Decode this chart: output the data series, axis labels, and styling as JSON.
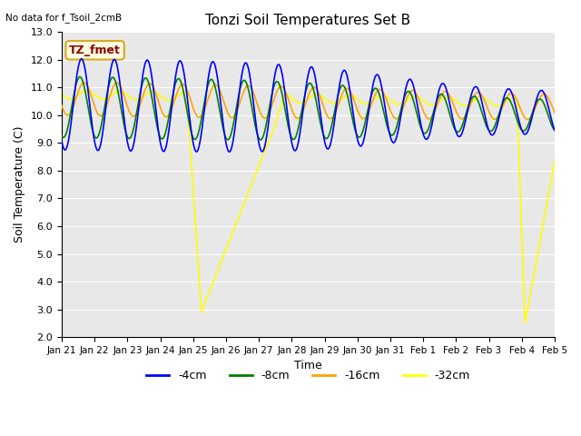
{
  "title": "Tonzi Soil Temperatures Set B",
  "no_data_label": "No data for f_Tsoil_2cmB",
  "tz_fmet_label": "TZ_fmet",
  "xlabel": "Time",
  "ylabel": "Soil Temperature (C)",
  "ylim": [
    2.0,
    13.0
  ],
  "yticks": [
    2.0,
    3.0,
    4.0,
    5.0,
    6.0,
    7.0,
    8.0,
    9.0,
    10.0,
    11.0,
    12.0,
    13.0
  ],
  "xtick_labels": [
    "Jan 21",
    "Jan 22",
    "Jan 23",
    "Jan 24",
    "Jan 25",
    "Jan 26",
    "Jan 27",
    "Jan 28",
    "Jan 29",
    "Jan 30",
    "Jan 31",
    "Feb 1",
    "Feb 2",
    "Feb 3",
    "Feb 4",
    "Feb 5"
  ],
  "series_colors": [
    "blue",
    "green",
    "orange",
    "yellow"
  ],
  "series_labels": [
    "-4cm",
    "-8cm",
    "-16cm",
    "-32cm"
  ],
  "plot_bg_color": "#e8e8e8",
  "grid_color": "white"
}
